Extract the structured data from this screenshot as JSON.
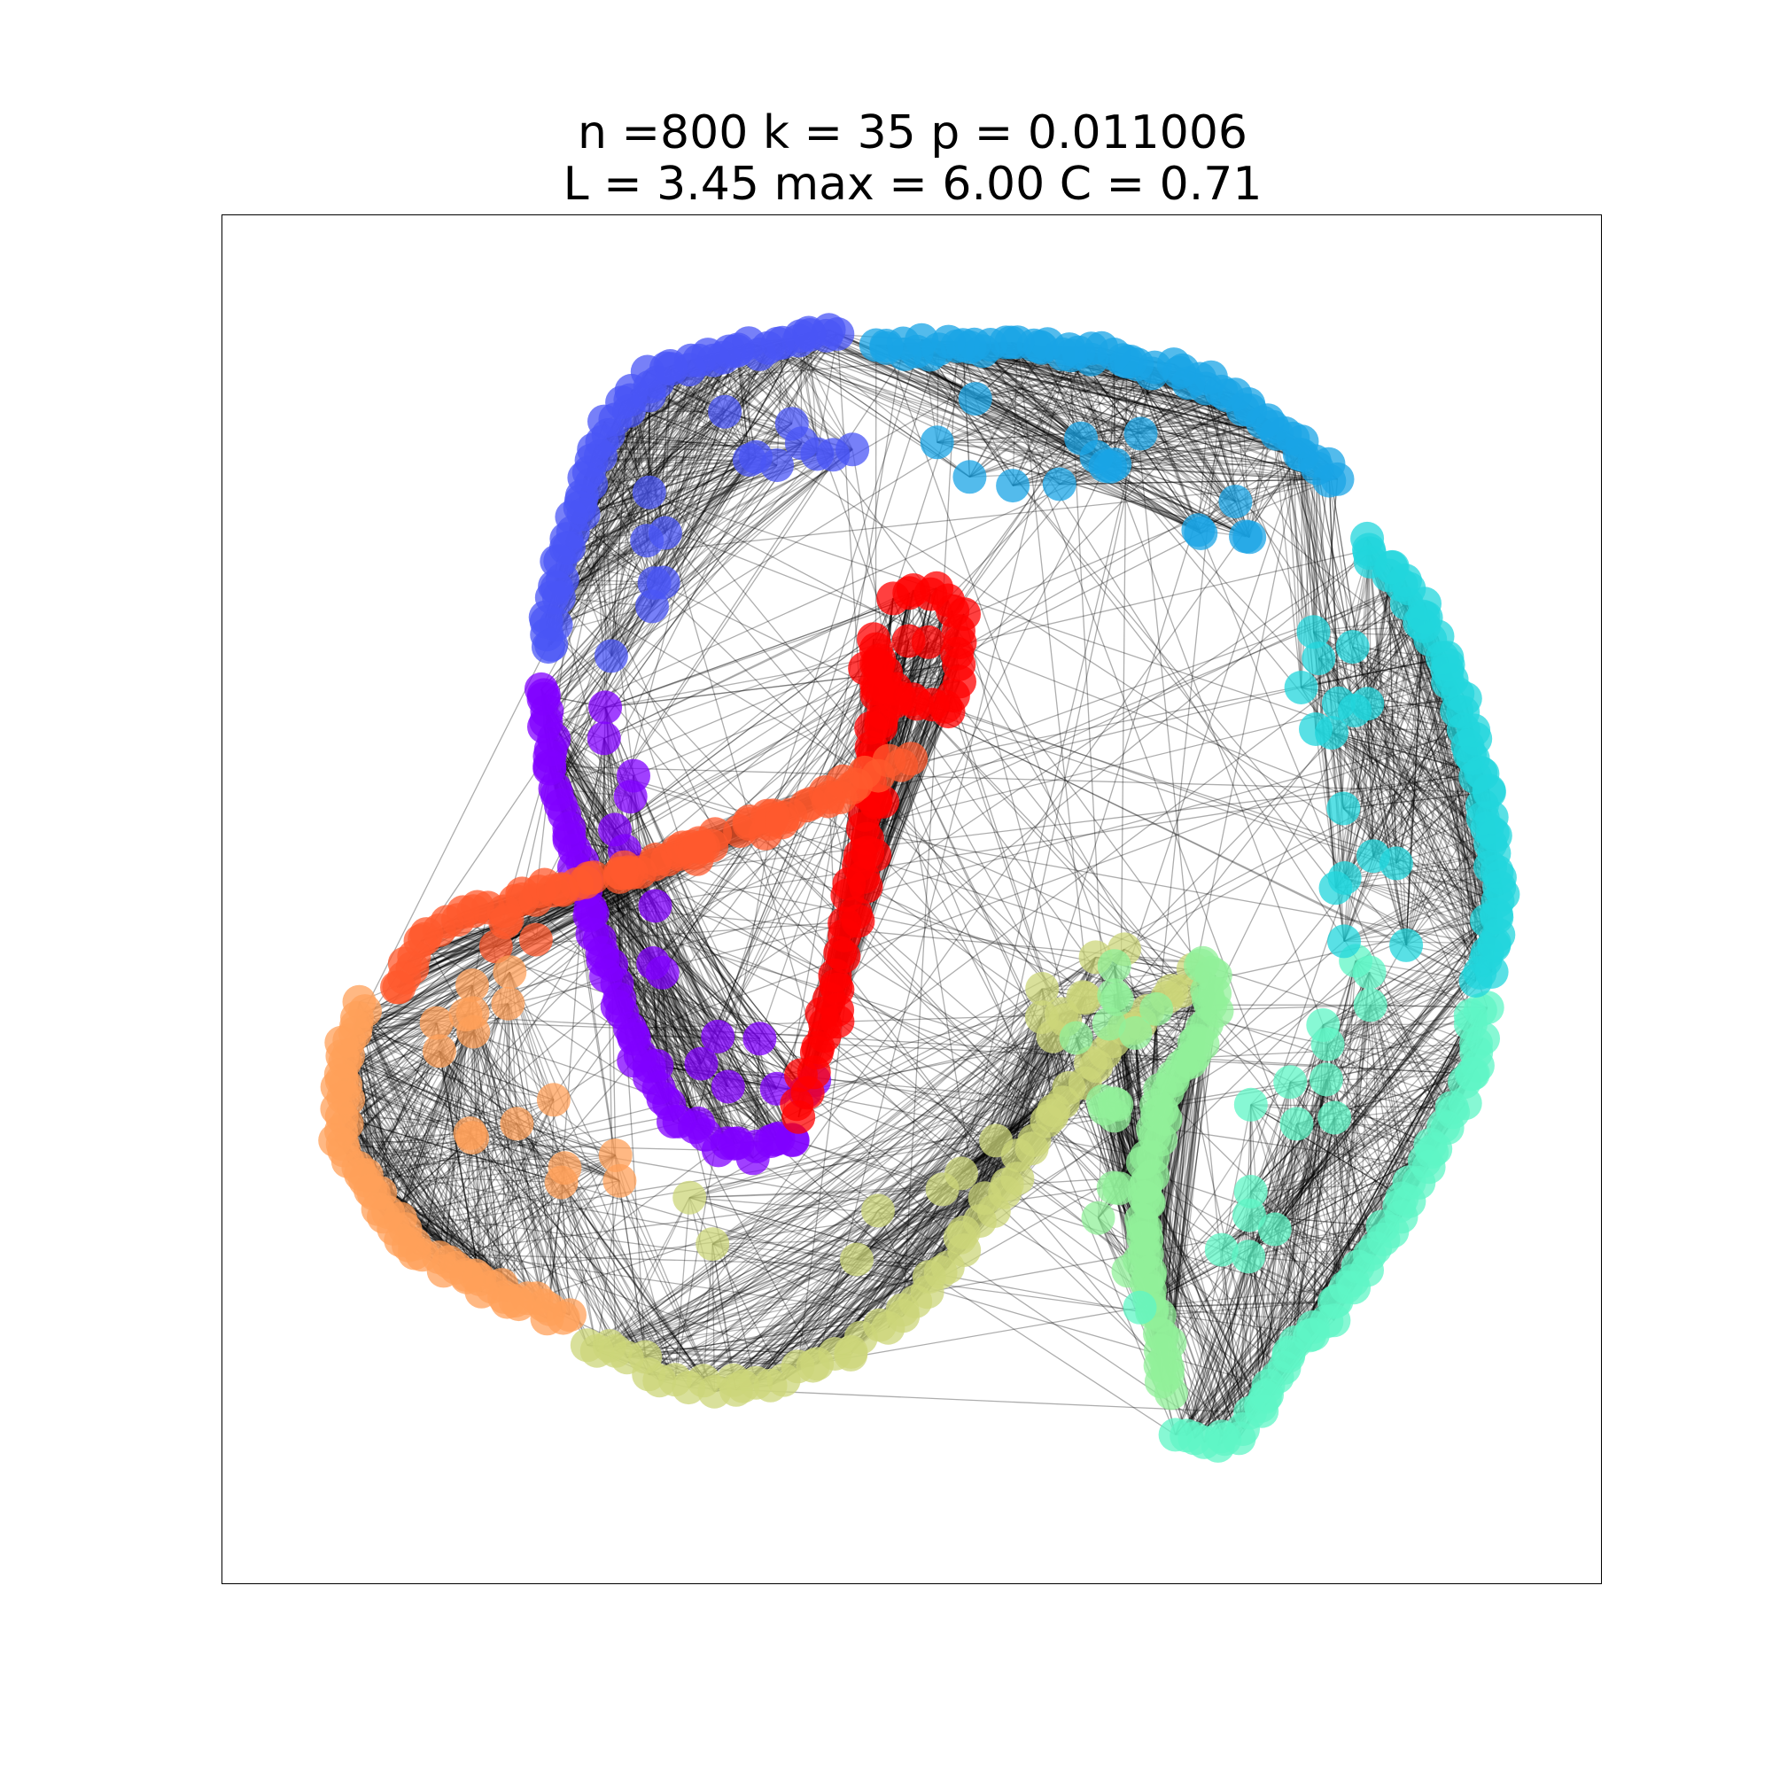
{
  "title": {
    "line1": "n =800 k = 35 p = 0.011006",
    "line2": "L = 3.45 max = 6.00 C = 0.71"
  },
  "graph": {
    "type": "network",
    "node_count": 800,
    "edge_color": "#000000",
    "node_opacity": 0.75,
    "colors": {
      "red": "#ff0000",
      "orange_red": "#ff5a2e",
      "orange": "#ffa05a",
      "olive": "#ccd67a",
      "light_green": "#92f09a",
      "aquamarine": "#5ff5c5",
      "cyan": "#22d6dc",
      "sky_blue": "#1aa4e6",
      "blue": "#4a55f6",
      "violet": "#8000ff"
    }
  }
}
